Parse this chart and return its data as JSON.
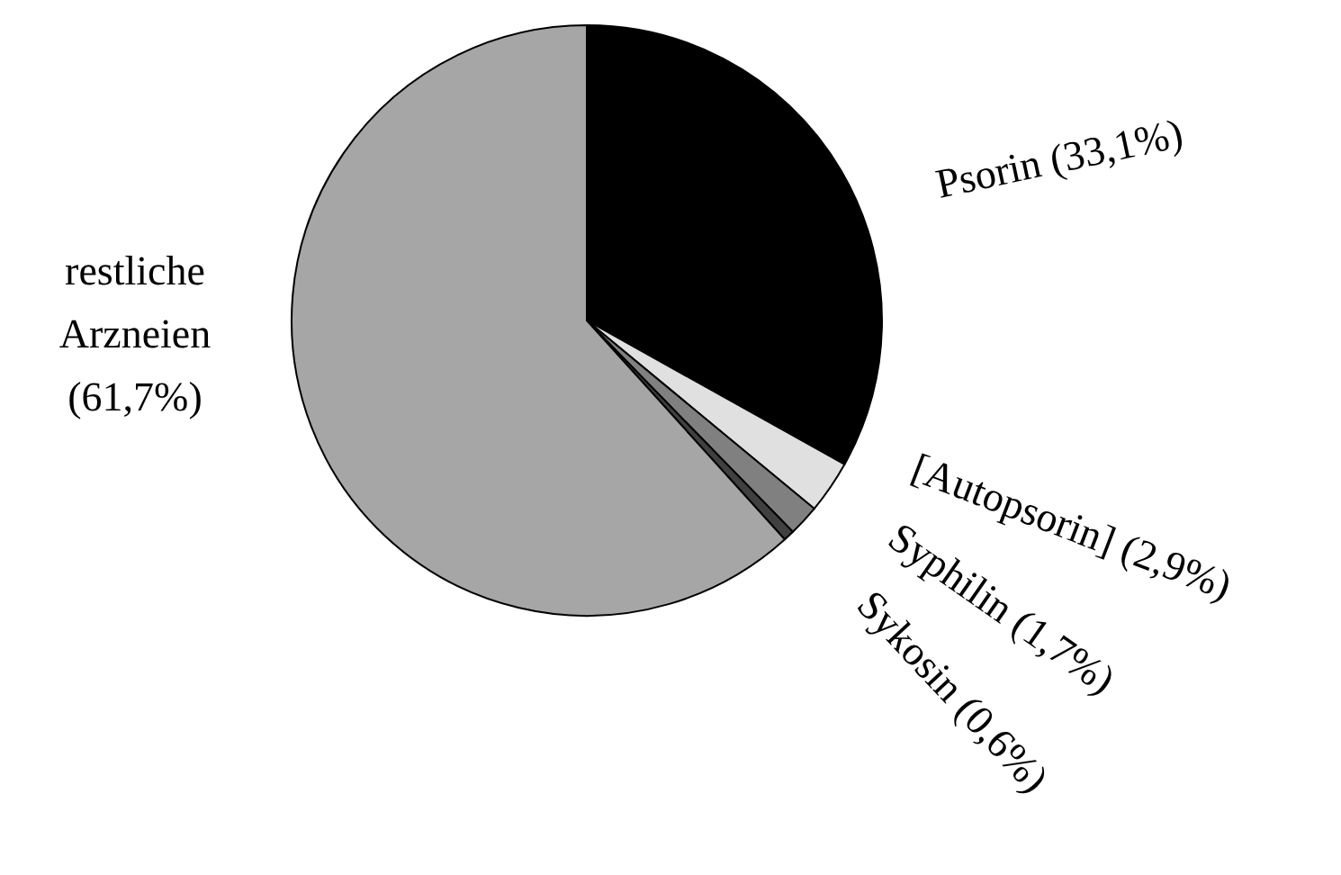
{
  "chart_data": {
    "type": "pie",
    "categories": [
      "Psorin",
      "[Autopsorin]",
      "Syphilin",
      "Sykosin",
      "restliche Arzneien"
    ],
    "values": [
      33.1,
      2.9,
      1.7,
      0.6,
      61.7
    ],
    "value_labels": [
      "(33,1%)",
      "(2,9%)",
      "(1,7%)",
      "(0,6%)",
      "(61,7%)"
    ],
    "colors": [
      "#000000",
      "#e0e0e0",
      "#808080",
      "#404040",
      "#a6a6a6"
    ]
  }
}
